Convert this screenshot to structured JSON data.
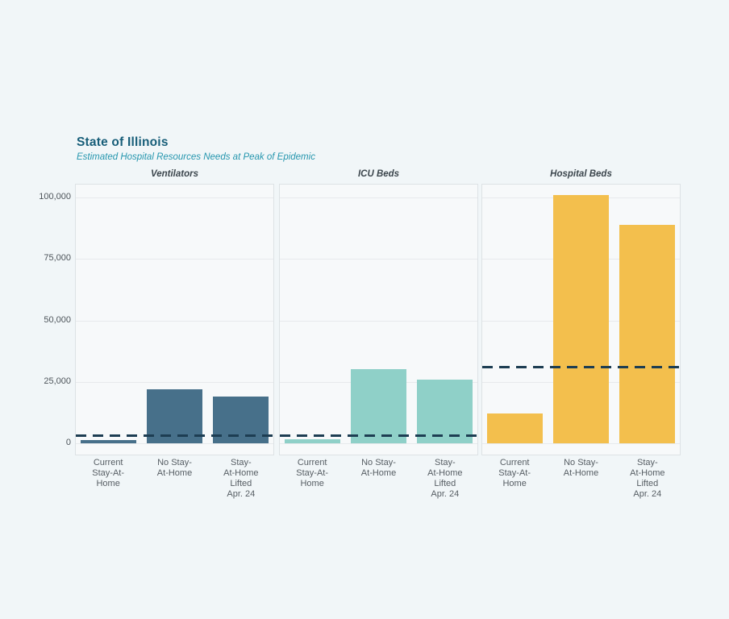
{
  "title": "State of Illinois",
  "subtitle": "Estimated Hospital Resources Needs at Peak of Epidemic",
  "colors": {
    "page_bg": "#f1f6f8",
    "panel_bg": "#f7f9fa",
    "panel_border": "#dde2e5",
    "gridline": "#e7eaec",
    "title_text": "#185e79",
    "subtitle_text": "#2596ae",
    "panel_title_text": "#3c464d",
    "axis_text": "#4d545a",
    "capacity_line": "#1d3d52"
  },
  "chart_data": {
    "type": "bar",
    "title": "State of Illinois",
    "subtitle": "Estimated Hospital Resources Needs at Peak of Epidemic",
    "categories": [
      "Current Stay-At-Home",
      "No Stay-At-Home",
      "Stay-At-Home Lifted Apr. 24"
    ],
    "category_label_lines": [
      [
        "Current",
        "Stay-At-",
        "Home"
      ],
      [
        "No Stay-",
        "At-Home"
      ],
      [
        "Stay-",
        "At-Home",
        "Lifted",
        "Apr. 24"
      ]
    ],
    "y_ticks": [
      0,
      25000,
      50000,
      75000,
      100000
    ],
    "y_tick_labels": [
      "0",
      "25,000",
      "50,000",
      "75,000",
      "100,000"
    ],
    "ylim": [
      0,
      105000
    ],
    "grid": true,
    "legend": false,
    "capacity_line_style": "dashed",
    "panels": [
      {
        "title": "Ventilators",
        "bar_color": "#47708a",
        "values": [
          1300,
          22000,
          19000
        ],
        "capacity_line": 3300
      },
      {
        "title": "ICU Beds",
        "bar_color": "#8fd0c8",
        "values": [
          1600,
          30200,
          26000
        ],
        "capacity_line": 3400
      },
      {
        "title": "Hospital Beds",
        "bar_color": "#f3bf4d",
        "values": [
          12000,
          101000,
          89000
        ],
        "capacity_line": 31000
      }
    ]
  }
}
